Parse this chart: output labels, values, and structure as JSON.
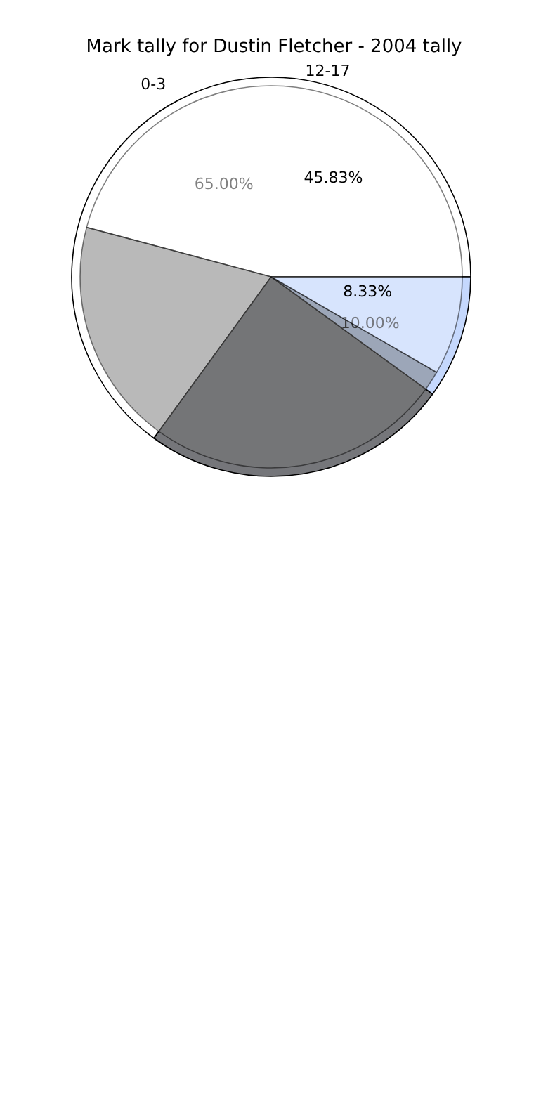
{
  "chart_data": [
    {
      "type": "pie",
      "title": "Mark tally for Dustin Fletcher - 2004 tally",
      "categories": [
        "0-3",
        null,
        null
      ],
      "values": [
        65,
        25,
        10
      ],
      "value_labels": [
        "65.00%",
        null,
        "10.00%"
      ],
      "colors": [
        "#ffffff",
        "#75767a",
        "#c5d8fd"
      ]
    },
    {
      "type": "pie",
      "categories": [
        "12-17",
        null,
        null
      ],
      "values": [
        45.83,
        45.83,
        8.33
      ],
      "value_labels": [
        "45.83%",
        null,
        "8.33%"
      ],
      "colors": [
        "#ffffff",
        "#737373",
        "#e9effd"
      ]
    }
  ]
}
